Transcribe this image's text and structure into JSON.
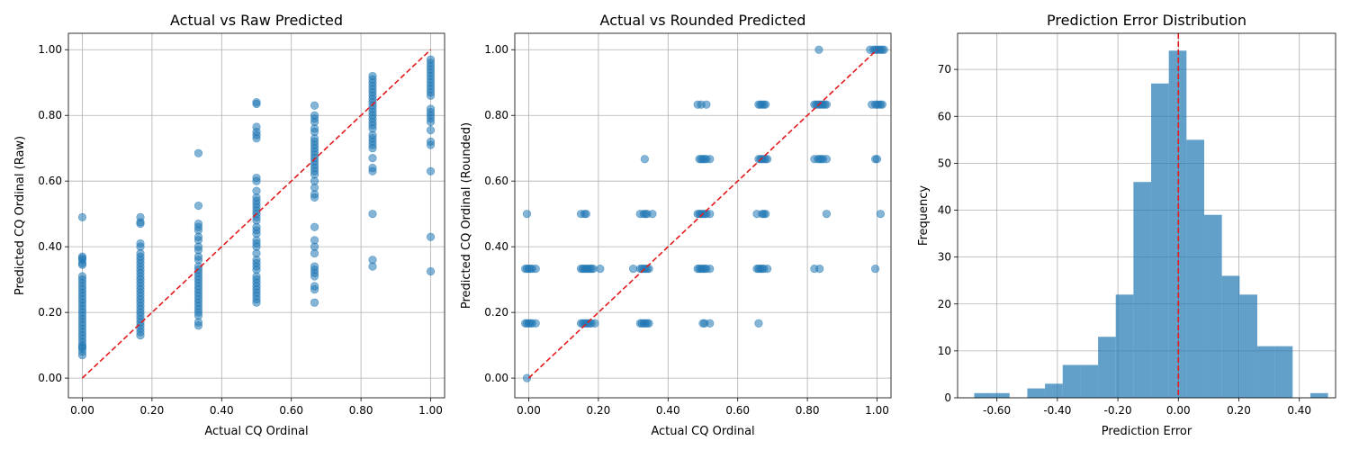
{
  "colors": {
    "points": "#1f77b4",
    "bars": "#1f77b4",
    "reference": "#e31a1c",
    "grid": "#b0b0b0"
  },
  "chart_data": [
    {
      "type": "scatter",
      "title": "Actual vs Raw Predicted",
      "xlabel": "Actual CQ Ordinal",
      "ylabel": "Predicted CQ Ordinal (Raw)",
      "xlim": [
        -0.04,
        1.04
      ],
      "ylim": [
        -0.06,
        1.05
      ],
      "xticks": [
        "0.00",
        "0.20",
        "0.40",
        "0.60",
        "0.80",
        "1.00"
      ],
      "yticks": [
        "0.00",
        "0.20",
        "0.40",
        "0.60",
        "0.80",
        "1.00"
      ],
      "grid": true,
      "reference_line": {
        "from": [
          0,
          0
        ],
        "to": [
          1,
          1
        ],
        "style": "dashed"
      },
      "groups": [
        {
          "x": 0.0,
          "y": [
            0.49,
            0.37,
            0.365,
            0.36,
            0.35,
            0.345,
            0.31,
            0.3,
            0.29,
            0.28,
            0.27,
            0.26,
            0.25,
            0.24,
            0.23,
            0.22,
            0.21,
            0.2,
            0.19,
            0.18,
            0.17,
            0.16,
            0.15,
            0.14,
            0.13,
            0.12,
            0.11,
            0.1,
            0.095,
            0.09,
            0.08,
            0.07
          ]
        },
        {
          "x": 0.1667,
          "y": [
            0.49,
            0.475,
            0.47,
            0.41,
            0.4,
            0.38,
            0.37,
            0.36,
            0.35,
            0.34,
            0.33,
            0.32,
            0.31,
            0.3,
            0.29,
            0.28,
            0.27,
            0.26,
            0.25,
            0.24,
            0.23,
            0.22,
            0.21,
            0.2,
            0.19,
            0.18,
            0.17,
            0.16,
            0.15,
            0.14,
            0.13
          ]
        },
        {
          "x": 0.3333,
          "y": [
            0.685,
            0.525,
            0.47,
            0.46,
            0.45,
            0.43,
            0.42,
            0.4,
            0.39,
            0.37,
            0.36,
            0.34,
            0.33,
            0.32,
            0.31,
            0.3,
            0.29,
            0.28,
            0.27,
            0.26,
            0.25,
            0.24,
            0.23,
            0.22,
            0.21,
            0.2,
            0.19,
            0.17,
            0.16
          ]
        },
        {
          "x": 0.5,
          "y": [
            0.84,
            0.835,
            0.765,
            0.75,
            0.74,
            0.73,
            0.61,
            0.6,
            0.57,
            0.55,
            0.54,
            0.53,
            0.52,
            0.51,
            0.5,
            0.49,
            0.48,
            0.46,
            0.45,
            0.44,
            0.42,
            0.41,
            0.4,
            0.38,
            0.36,
            0.35,
            0.34,
            0.33,
            0.31,
            0.3,
            0.29,
            0.28,
            0.27,
            0.26,
            0.25,
            0.24,
            0.23
          ]
        },
        {
          "x": 0.6667,
          "y": [
            0.83,
            0.8,
            0.79,
            0.78,
            0.76,
            0.75,
            0.73,
            0.72,
            0.71,
            0.7,
            0.69,
            0.68,
            0.67,
            0.66,
            0.65,
            0.64,
            0.63,
            0.62,
            0.6,
            0.58,
            0.56,
            0.55,
            0.46,
            0.42,
            0.4,
            0.38,
            0.34,
            0.33,
            0.32,
            0.31,
            0.28,
            0.27,
            0.23
          ]
        },
        {
          "x": 0.8333,
          "y": [
            0.92,
            0.91,
            0.9,
            0.89,
            0.88,
            0.87,
            0.86,
            0.85,
            0.84,
            0.83,
            0.82,
            0.81,
            0.8,
            0.79,
            0.78,
            0.77,
            0.76,
            0.74,
            0.73,
            0.72,
            0.71,
            0.7,
            0.67,
            0.64,
            0.63,
            0.5,
            0.36,
            0.34
          ]
        },
        {
          "x": 1.0,
          "y": [
            0.97,
            0.96,
            0.95,
            0.94,
            0.93,
            0.92,
            0.91,
            0.9,
            0.89,
            0.88,
            0.87,
            0.86,
            0.82,
            0.81,
            0.8,
            0.79,
            0.78,
            0.755,
            0.72,
            0.71,
            0.63,
            0.43,
            0.325
          ]
        }
      ]
    },
    {
      "type": "scatter",
      "title": "Actual vs Rounded Predicted",
      "xlabel": "Actual CQ Ordinal",
      "ylabel": "Predicted CQ Ordinal (Rounded)",
      "xlim": [
        -0.04,
        1.04
      ],
      "ylim": [
        -0.06,
        1.05
      ],
      "xticks": [
        "0.00",
        "0.20",
        "0.40",
        "0.60",
        "0.80",
        "1.00"
      ],
      "yticks": [
        "0.00",
        "0.20",
        "0.40",
        "0.60",
        "0.80",
        "1.00"
      ],
      "grid": true,
      "reference_line": {
        "from": [
          0,
          0
        ],
        "to": [
          1,
          1
        ],
        "style": "dashed"
      },
      "points": [
        [
          -0.005,
          0.5
        ],
        [
          -0.01,
          0.333
        ],
        [
          -0.005,
          0.333
        ],
        [
          0.0,
          0.333
        ],
        [
          0.005,
          0.333
        ],
        [
          0.01,
          0.333
        ],
        [
          0.02,
          0.333
        ],
        [
          -0.01,
          0.1667
        ],
        [
          -0.005,
          0.1667
        ],
        [
          0.0,
          0.1667
        ],
        [
          0.005,
          0.1667
        ],
        [
          0.01,
          0.1667
        ],
        [
          0.02,
          0.1667
        ],
        [
          -0.005,
          0.0
        ],
        [
          0.15,
          0.5
        ],
        [
          0.16,
          0.5
        ],
        [
          0.165,
          0.5
        ],
        [
          0.15,
          0.333
        ],
        [
          0.155,
          0.333
        ],
        [
          0.16,
          0.333
        ],
        [
          0.165,
          0.333
        ],
        [
          0.17,
          0.333
        ],
        [
          0.175,
          0.333
        ],
        [
          0.18,
          0.333
        ],
        [
          0.185,
          0.333
        ],
        [
          0.205,
          0.333
        ],
        [
          0.15,
          0.1667
        ],
        [
          0.155,
          0.1667
        ],
        [
          0.16,
          0.1667
        ],
        [
          0.165,
          0.1667
        ],
        [
          0.17,
          0.1667
        ],
        [
          0.175,
          0.1667
        ],
        [
          0.18,
          0.1667
        ],
        [
          0.19,
          0.1667
        ],
        [
          0.333,
          0.667
        ],
        [
          0.32,
          0.5
        ],
        [
          0.33,
          0.5
        ],
        [
          0.335,
          0.5
        ],
        [
          0.34,
          0.5
        ],
        [
          0.355,
          0.5
        ],
        [
          0.3,
          0.333
        ],
        [
          0.32,
          0.333
        ],
        [
          0.325,
          0.333
        ],
        [
          0.33,
          0.333
        ],
        [
          0.335,
          0.333
        ],
        [
          0.34,
          0.333
        ],
        [
          0.345,
          0.333
        ],
        [
          0.32,
          0.1667
        ],
        [
          0.325,
          0.1667
        ],
        [
          0.33,
          0.1667
        ],
        [
          0.335,
          0.1667
        ],
        [
          0.34,
          0.1667
        ],
        [
          0.345,
          0.1667
        ],
        [
          0.485,
          0.833
        ],
        [
          0.495,
          0.833
        ],
        [
          0.51,
          0.833
        ],
        [
          0.49,
          0.667
        ],
        [
          0.495,
          0.667
        ],
        [
          0.5,
          0.667
        ],
        [
          0.505,
          0.667
        ],
        [
          0.51,
          0.667
        ],
        [
          0.52,
          0.667
        ],
        [
          0.485,
          0.5
        ],
        [
          0.49,
          0.5
        ],
        [
          0.495,
          0.5
        ],
        [
          0.5,
          0.5
        ],
        [
          0.505,
          0.5
        ],
        [
          0.51,
          0.5
        ],
        [
          0.52,
          0.5
        ],
        [
          0.485,
          0.333
        ],
        [
          0.49,
          0.333
        ],
        [
          0.495,
          0.333
        ],
        [
          0.5,
          0.333
        ],
        [
          0.505,
          0.333
        ],
        [
          0.51,
          0.333
        ],
        [
          0.52,
          0.333
        ],
        [
          0.5,
          0.1667
        ],
        [
          0.505,
          0.1667
        ],
        [
          0.52,
          0.1667
        ],
        [
          0.66,
          0.833
        ],
        [
          0.665,
          0.833
        ],
        [
          0.67,
          0.833
        ],
        [
          0.675,
          0.833
        ],
        [
          0.68,
          0.833
        ],
        [
          0.66,
          0.667
        ],
        [
          0.665,
          0.667
        ],
        [
          0.67,
          0.667
        ],
        [
          0.675,
          0.667
        ],
        [
          0.68,
          0.667
        ],
        [
          0.685,
          0.667
        ],
        [
          0.655,
          0.5
        ],
        [
          0.67,
          0.5
        ],
        [
          0.675,
          0.5
        ],
        [
          0.68,
          0.5
        ],
        [
          0.655,
          0.333
        ],
        [
          0.66,
          0.333
        ],
        [
          0.665,
          0.333
        ],
        [
          0.67,
          0.333
        ],
        [
          0.675,
          0.333
        ],
        [
          0.685,
          0.333
        ],
        [
          0.66,
          0.1667
        ],
        [
          0.833,
          1.0
        ],
        [
          0.82,
          0.833
        ],
        [
          0.825,
          0.833
        ],
        [
          0.83,
          0.833
        ],
        [
          0.835,
          0.833
        ],
        [
          0.84,
          0.833
        ],
        [
          0.845,
          0.833
        ],
        [
          0.85,
          0.833
        ],
        [
          0.855,
          0.833
        ],
        [
          0.82,
          0.667
        ],
        [
          0.83,
          0.667
        ],
        [
          0.835,
          0.667
        ],
        [
          0.84,
          0.667
        ],
        [
          0.845,
          0.667
        ],
        [
          0.855,
          0.667
        ],
        [
          0.855,
          0.5
        ],
        [
          0.82,
          0.333
        ],
        [
          0.835,
          0.333
        ],
        [
          0.98,
          1.0
        ],
        [
          0.99,
          1.0
        ],
        [
          0.995,
          1.0
        ],
        [
          1.0,
          1.0
        ],
        [
          1.005,
          1.0
        ],
        [
          1.01,
          1.0
        ],
        [
          1.015,
          1.0
        ],
        [
          1.02,
          1.0
        ],
        [
          0.985,
          0.833
        ],
        [
          0.995,
          0.833
        ],
        [
          1.0,
          0.833
        ],
        [
          1.005,
          0.833
        ],
        [
          1.01,
          0.833
        ],
        [
          1.015,
          0.833
        ],
        [
          0.995,
          0.667
        ],
        [
          1.0,
          0.667
        ],
        [
          1.01,
          0.5
        ],
        [
          0.995,
          0.333
        ]
      ]
    },
    {
      "type": "bar",
      "subtype": "histogram",
      "title": "Prediction Error Distribution",
      "xlabel": "Prediction Error",
      "ylabel": "Frequency",
      "xlim": [
        -0.73,
        0.52
      ],
      "ylim": [
        0,
        77.7
      ],
      "xticks": [
        "-0.60",
        "-0.40",
        "-0.20",
        "0.00",
        "0.20",
        "0.40"
      ],
      "yticks": [
        "0",
        "10",
        "20",
        "30",
        "40",
        "50",
        "60",
        "70"
      ],
      "grid": true,
      "reference_line": {
        "x": 0,
        "style": "dashed"
      },
      "bins": [
        {
          "start": -0.675,
          "end": -0.6165,
          "count": 1
        },
        {
          "start": -0.6165,
          "end": -0.558,
          "count": 1
        },
        {
          "start": -0.558,
          "end": -0.4995,
          "count": 0
        },
        {
          "start": -0.4995,
          "end": -0.441,
          "count": 2
        },
        {
          "start": -0.441,
          "end": -0.3825,
          "count": 3
        },
        {
          "start": -0.3825,
          "end": -0.324,
          "count": 7
        },
        {
          "start": -0.324,
          "end": -0.2655,
          "count": 7
        },
        {
          "start": -0.2655,
          "end": -0.207,
          "count": 13
        },
        {
          "start": -0.207,
          "end": -0.1485,
          "count": 22
        },
        {
          "start": -0.1485,
          "end": -0.09,
          "count": 46
        },
        {
          "start": -0.09,
          "end": -0.0315,
          "count": 67
        },
        {
          "start": -0.0315,
          "end": 0.027,
          "count": 74
        },
        {
          "start": 0.027,
          "end": 0.0855,
          "count": 55
        },
        {
          "start": 0.0855,
          "end": 0.144,
          "count": 39
        },
        {
          "start": 0.144,
          "end": 0.2025,
          "count": 26
        },
        {
          "start": 0.2025,
          "end": 0.261,
          "count": 22
        },
        {
          "start": 0.261,
          "end": 0.3195,
          "count": 11
        },
        {
          "start": 0.3195,
          "end": 0.378,
          "count": 11
        },
        {
          "start": 0.378,
          "end": 0.4365,
          "count": 0
        },
        {
          "start": 0.4365,
          "end": 0.495,
          "count": 1
        }
      ]
    }
  ]
}
